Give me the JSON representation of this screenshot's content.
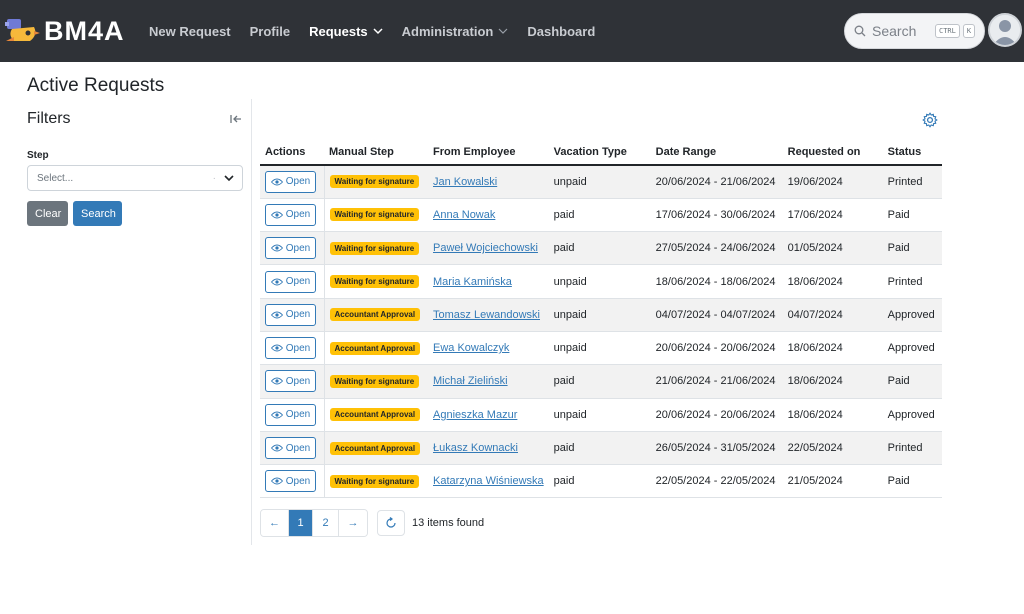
{
  "app": {
    "title": "BM4A",
    "logo_icon": "rocket-bird-logo-icon"
  },
  "nav": {
    "items": [
      {
        "label": "New Request",
        "active": false,
        "dropdown": false
      },
      {
        "label": "Profile",
        "active": false,
        "dropdown": false
      },
      {
        "label": "Requests",
        "active": true,
        "dropdown": true
      },
      {
        "label": "Administration",
        "active": false,
        "dropdown": true
      },
      {
        "label": "Dashboard",
        "active": false,
        "dropdown": false
      }
    ]
  },
  "search": {
    "placeholder": "Search",
    "shortcut_keys": [
      "CTRL",
      "K"
    ]
  },
  "page": {
    "title": "Active Requests"
  },
  "filters": {
    "title": "Filters",
    "step_label": "Step",
    "step_placeholder": "Select...",
    "clear_label": "Clear",
    "search_label": "Search"
  },
  "table": {
    "columns": [
      "Actions",
      "Manual Step",
      "From Employee",
      "Vacation Type",
      "Date Range",
      "Requested on",
      "Status"
    ],
    "open_label": "Open",
    "rows": [
      {
        "step": "Waiting for signature",
        "employee": "Jan Kowalski",
        "type": "unpaid",
        "range": "20/06/2024 - 21/06/2024",
        "requested": "19/06/2024",
        "status": "Printed"
      },
      {
        "step": "Waiting for signature",
        "employee": "Anna Nowak",
        "type": "paid",
        "range": "17/06/2024 - 30/06/2024",
        "requested": "17/06/2024",
        "status": "Paid"
      },
      {
        "step": "Waiting for signature",
        "employee": "Paweł Wojciechowski",
        "type": "paid",
        "range": "27/05/2024 - 24/06/2024",
        "requested": "01/05/2024",
        "status": "Paid"
      },
      {
        "step": "Waiting for signature",
        "employee": "Maria Kamińska",
        "type": "unpaid",
        "range": "18/06/2024 - 18/06/2024",
        "requested": "18/06/2024",
        "status": "Printed"
      },
      {
        "step": "Accountant Approval",
        "employee": "Tomasz Lewandowski",
        "type": "unpaid",
        "range": "04/07/2024 - 04/07/2024",
        "requested": "04/07/2024",
        "status": "Approved"
      },
      {
        "step": "Accountant Approval",
        "employee": "Ewa Kowalczyk",
        "type": "unpaid",
        "range": "20/06/2024 - 20/06/2024",
        "requested": "18/06/2024",
        "status": "Approved"
      },
      {
        "step": "Waiting for signature",
        "employee": "Michał Zieliński",
        "type": "paid",
        "range": "21/06/2024 - 21/06/2024",
        "requested": "18/06/2024",
        "status": "Paid"
      },
      {
        "step": "Accountant Approval",
        "employee": "Agnieszka Mazur",
        "type": "unpaid",
        "range": "20/06/2024 - 20/06/2024",
        "requested": "18/06/2024",
        "status": "Approved"
      },
      {
        "step": "Accountant Approval",
        "employee": "Łukasz Kownacki",
        "type": "paid",
        "range": "26/05/2024 - 31/05/2024",
        "requested": "22/05/2024",
        "status": "Printed"
      },
      {
        "step": "Waiting for signature",
        "employee": "Katarzyna Wiśniewska",
        "type": "paid",
        "range": "22/05/2024 - 22/05/2024",
        "requested": "21/05/2024",
        "status": "Paid"
      }
    ]
  },
  "pagination": {
    "prev": "←",
    "pages": [
      "1",
      "2"
    ],
    "current": "1",
    "next": "→",
    "items_found": "13 items found"
  },
  "colors": {
    "topbar": "#2f3237",
    "accent": "#337ab7",
    "badge": "#ffc107",
    "clear_button": "#6c757d"
  }
}
